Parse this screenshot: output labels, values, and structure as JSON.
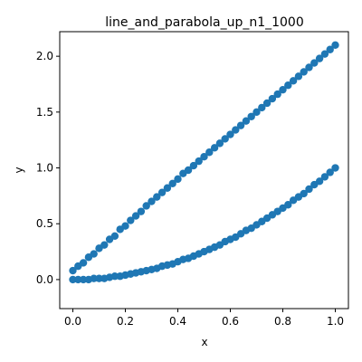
{
  "chart_data": {
    "type": "scatter",
    "title": "line_and_parabola_up_n1_1000",
    "xlabel": "x",
    "ylabel": "y",
    "xlim": [
      -0.05,
      1.05
    ],
    "ylim": [
      -0.26,
      2.22
    ],
    "xticks": [
      0.0,
      0.2,
      0.4,
      0.6,
      0.8,
      1.0
    ],
    "xtick_labels": [
      "0.0",
      "0.2",
      "0.4",
      "0.6",
      "0.8",
      "1.0"
    ],
    "yticks": [
      0.0,
      0.5,
      1.0,
      1.5,
      2.0
    ],
    "ytick_labels": [
      "0.0",
      "0.5",
      "1.0",
      "1.5",
      "2.0"
    ],
    "grid": false,
    "marker_color": "#1f77b4",
    "series": [
      {
        "values_description": "upper band: y ≈ 2x + 0.1",
        "x": [
          0.0,
          0.02,
          0.04,
          0.06,
          0.08,
          0.1,
          0.12,
          0.14,
          0.16,
          0.18,
          0.2,
          0.22,
          0.24,
          0.26,
          0.28,
          0.3,
          0.32,
          0.34,
          0.36,
          0.38,
          0.4,
          0.42,
          0.44,
          0.46,
          0.48,
          0.5,
          0.52,
          0.54,
          0.56,
          0.58,
          0.6,
          0.62,
          0.64,
          0.66,
          0.68,
          0.7,
          0.72,
          0.74,
          0.76,
          0.78,
          0.8,
          0.82,
          0.84,
          0.86,
          0.88,
          0.9,
          0.92,
          0.94,
          0.96,
          0.98,
          1.0
        ],
        "y": [
          0.08,
          0.12,
          0.15,
          0.2,
          0.23,
          0.28,
          0.31,
          0.36,
          0.39,
          0.45,
          0.48,
          0.53,
          0.57,
          0.61,
          0.66,
          0.7,
          0.74,
          0.78,
          0.82,
          0.86,
          0.9,
          0.95,
          0.98,
          1.02,
          1.06,
          1.1,
          1.14,
          1.18,
          1.22,
          1.26,
          1.3,
          1.34,
          1.38,
          1.42,
          1.46,
          1.5,
          1.54,
          1.58,
          1.62,
          1.66,
          1.7,
          1.74,
          1.78,
          1.82,
          1.86,
          1.9,
          1.94,
          1.98,
          2.02,
          2.06,
          2.1
        ]
      },
      {
        "values_description": "lower band: y ≈ x^2",
        "x": [
          0.0,
          0.02,
          0.04,
          0.06,
          0.08,
          0.1,
          0.12,
          0.14,
          0.16,
          0.18,
          0.2,
          0.22,
          0.24,
          0.26,
          0.28,
          0.3,
          0.32,
          0.34,
          0.36,
          0.38,
          0.4,
          0.42,
          0.44,
          0.46,
          0.48,
          0.5,
          0.52,
          0.54,
          0.56,
          0.58,
          0.6,
          0.62,
          0.64,
          0.66,
          0.68,
          0.7,
          0.72,
          0.74,
          0.76,
          0.78,
          0.8,
          0.82,
          0.84,
          0.86,
          0.88,
          0.9,
          0.92,
          0.94,
          0.96,
          0.98,
          1.0
        ],
        "y": [
          0.0,
          0.0,
          0.0,
          0.0,
          0.01,
          0.01,
          0.01,
          0.02,
          0.03,
          0.03,
          0.04,
          0.05,
          0.06,
          0.07,
          0.08,
          0.09,
          0.1,
          0.12,
          0.13,
          0.14,
          0.16,
          0.18,
          0.19,
          0.21,
          0.23,
          0.25,
          0.27,
          0.29,
          0.31,
          0.34,
          0.36,
          0.38,
          0.41,
          0.44,
          0.46,
          0.49,
          0.52,
          0.55,
          0.58,
          0.61,
          0.64,
          0.67,
          0.71,
          0.74,
          0.77,
          0.81,
          0.85,
          0.88,
          0.92,
          0.96,
          1.0
        ]
      }
    ]
  }
}
